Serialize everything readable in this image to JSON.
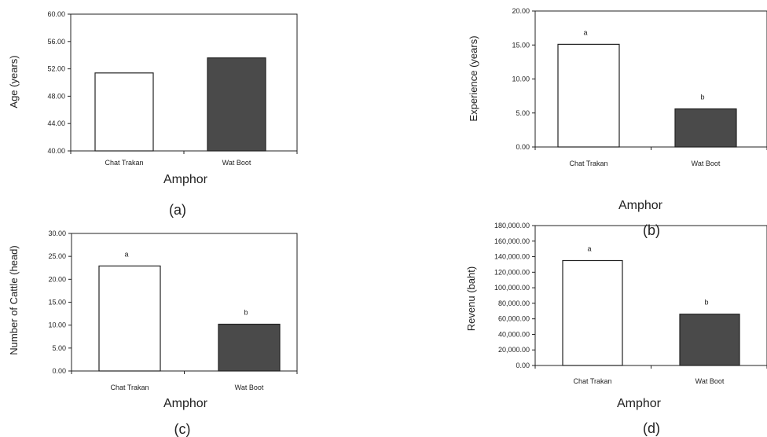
{
  "chart_data": [
    {
      "type": "bar",
      "panel": "(a)",
      "categories": [
        "Chat Trakan",
        "Wat Boot"
      ],
      "values": [
        51.4,
        53.6
      ],
      "bar_colors": [
        "#ffffff",
        "#4a4a4a"
      ],
      "significance": [
        "",
        ""
      ],
      "xlabel": "Amphor",
      "ylabel": "Age (years)",
      "ylim": [
        40,
        60
      ],
      "yticks": [
        "40.00",
        "44.00",
        "48.00",
        "52.00",
        "56.00",
        "60.00"
      ]
    },
    {
      "type": "bar",
      "panel": "(b)",
      "categories": [
        "Chat Trakan",
        "Wat Boot"
      ],
      "values": [
        15.1,
        5.6
      ],
      "bar_colors": [
        "#ffffff",
        "#4a4a4a"
      ],
      "significance": [
        "a",
        "b"
      ],
      "xlabel": "Amphor",
      "ylabel": "Experience (years)",
      "ylim": [
        0,
        20
      ],
      "yticks": [
        "0.00",
        "5.00",
        "10.00",
        "15.00",
        "20.00"
      ]
    },
    {
      "type": "bar",
      "panel": "(c)",
      "categories": [
        "Chat Trakan",
        "Wat Boot"
      ],
      "values": [
        22.9,
        10.2
      ],
      "bar_colors": [
        "#ffffff",
        "#4a4a4a"
      ],
      "significance": [
        "a",
        "b"
      ],
      "xlabel": "Amphor",
      "ylabel": "Number of Cattle  (head)",
      "ylim": [
        0,
        30
      ],
      "yticks": [
        "0.00",
        "5.00",
        "10.00",
        "15.00",
        "20.00",
        "25.00",
        "30.00"
      ]
    },
    {
      "type": "bar",
      "panel": "(d)",
      "categories": [
        "Chat Trakan",
        "Wat Boot"
      ],
      "values": [
        135000,
        66000
      ],
      "bar_colors": [
        "#ffffff",
        "#4a4a4a"
      ],
      "significance": [
        "a",
        "b"
      ],
      "xlabel": "Amphor",
      "ylabel": "Revenu (baht)",
      "ylim": [
        0,
        180000
      ],
      "yticks": [
        "0.00",
        "20,000.00",
        "40,000.00",
        "60,000.00",
        "80,000.00",
        "100,000.00",
        "120,000.00",
        "140,000.00",
        "160,000.00",
        "180,000.00"
      ]
    }
  ]
}
